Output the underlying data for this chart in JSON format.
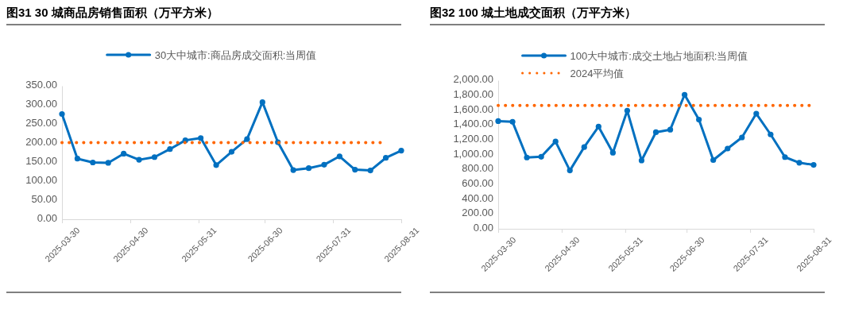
{
  "chart_data": [
    {
      "type": "line",
      "title": "图31 30 城商品房销售面积（万平方米）",
      "legend": "top",
      "grid": false,
      "x": [
        "2025-03-30",
        "2025-04-06",
        "2025-04-13",
        "2025-04-20",
        "2025-04-27",
        "2025-05-04",
        "2025-05-11",
        "2025-05-18",
        "2025-05-25",
        "2025-06-01",
        "2025-06-08",
        "2025-06-15",
        "2025-06-22",
        "2025-06-29",
        "2025-07-06",
        "2025-07-13",
        "2025-07-20",
        "2025-07-27",
        "2025-08-03",
        "2025-08-10",
        "2025-08-17",
        "2025-08-24",
        "2025-08-31"
      ],
      "xlim": [
        "2025-03-30",
        "2025-08-31"
      ],
      "xticks": [
        "2025-03-30",
        "2025-04-30",
        "2025-05-31",
        "2025-06-30",
        "2025-07-31",
        "2025-08-31"
      ],
      "ylim": [
        0,
        350
      ],
      "yticks": [
        {
          "value": 0,
          "label": "0.00"
        },
        {
          "value": 50,
          "label": "50.00"
        },
        {
          "value": 100,
          "label": "100.00"
        },
        {
          "value": 150,
          "label": "150.00"
        },
        {
          "value": 200,
          "label": "200.00"
        },
        {
          "value": 250,
          "label": "250.00"
        },
        {
          "value": 300,
          "label": "300.00"
        },
        {
          "value": 350,
          "label": "350.00"
        }
      ],
      "series": [
        {
          "name": "30大中城市:商品房成交面积:当周值",
          "color": "#0070c0",
          "marker": "circle",
          "line_style": "solid",
          "values": [
            276,
            159,
            149,
            148,
            172,
            156,
            163,
            184,
            207,
            213,
            142,
            177,
            210,
            307,
            202,
            129,
            134,
            143,
            165,
            130,
            128,
            161,
            180
          ]
        },
        {
          "color": "#ff6600",
          "marker": "none",
          "line_style": "dotted",
          "x": [
            "2025-03-30",
            "2025-08-24"
          ],
          "values": [
            201,
            201
          ]
        }
      ]
    },
    {
      "type": "line",
      "title": "图32 100 城土地成交面积（万平方米）",
      "legend": "top",
      "grid": false,
      "x": [
        "2025-03-30",
        "2025-04-06",
        "2025-04-13",
        "2025-04-20",
        "2025-04-27",
        "2025-05-04",
        "2025-05-11",
        "2025-05-18",
        "2025-05-25",
        "2025-06-01",
        "2025-06-08",
        "2025-06-15",
        "2025-06-22",
        "2025-06-29",
        "2025-07-06",
        "2025-07-13",
        "2025-07-20",
        "2025-07-27",
        "2025-08-03",
        "2025-08-10",
        "2025-08-17",
        "2025-08-24",
        "2025-08-31"
      ],
      "xlim": [
        "2025-03-30",
        "2025-08-31"
      ],
      "xticks": [
        "2025-03-30",
        "2025-04-30",
        "2025-05-31",
        "2025-06-30",
        "2025-07-31",
        "2025-08-31"
      ],
      "ylim": [
        0,
        2000
      ],
      "yticks": [
        {
          "value": 0,
          "label": "0.00"
        },
        {
          "value": 200,
          "label": "200.00"
        },
        {
          "value": 400,
          "label": "400.00"
        },
        {
          "value": 600,
          "label": "600.00"
        },
        {
          "value": 800,
          "label": "800.00"
        },
        {
          "value": 1000,
          "label": "1,000.00"
        },
        {
          "value": 1200,
          "label": "1,200.00"
        },
        {
          "value": 1400,
          "label": "1,400.00"
        },
        {
          "value": 1600,
          "label": "1,600.00"
        },
        {
          "value": 1800,
          "label": "1,800.00"
        },
        {
          "value": 2000,
          "label": "2,000.00"
        }
      ],
      "series": [
        {
          "name": "100大中城市:成交土地占地面积:当周值",
          "color": "#0070c0",
          "marker": "circle",
          "line_style": "solid",
          "values": [
            1450,
            1440,
            960,
            970,
            1175,
            785,
            1100,
            1375,
            1025,
            1590,
            920,
            1300,
            1335,
            1805,
            1470,
            925,
            1080,
            1230,
            1550,
            1270,
            965,
            890,
            860
          ]
        },
        {
          "name": "2024平均值",
          "color": "#ff6600",
          "marker": "none",
          "line_style": "dotted",
          "x": [
            "2025-03-30",
            "2025-08-31"
          ],
          "values": [
            1660,
            1660
          ]
        }
      ]
    }
  ]
}
